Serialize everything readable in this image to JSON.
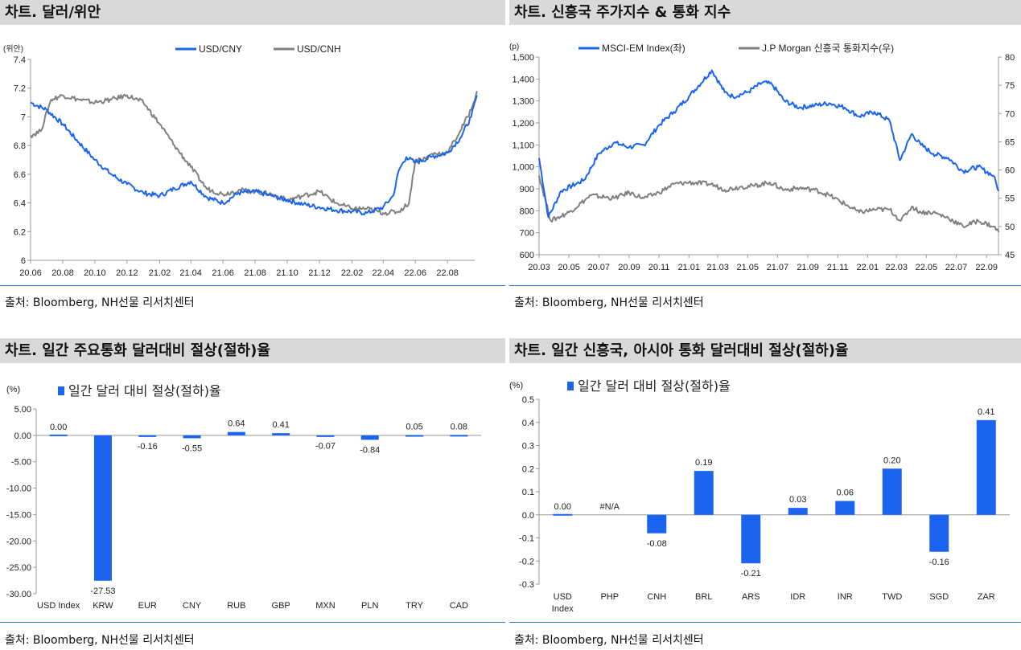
{
  "panels": [
    {
      "title": "차트. 달러/위안",
      "source": "출처: Bloomberg, NH선물 리서치센터"
    },
    {
      "title": "차트. 신흥국 주가지수 & 통화 지수",
      "source": "출처: Bloomberg, NH선물 리서치센터"
    },
    {
      "title": "차트. 일간 주요통화 달러대비 절상(절하)율",
      "source": "출처: Bloomberg, NH선물 리서치센터"
    },
    {
      "title": "차트. 일간 신흥국, 아시아 통화 달러대비 절상(절하)율",
      "source": "출처: Bloomberg, NH선물 리서치센터"
    }
  ],
  "colors": {
    "blue": "#1a64f0",
    "gray": "#808080",
    "title_bg": "#d9d9d9",
    "divider": "#2e75b6"
  },
  "chart_data": [
    {
      "type": "line",
      "unit_label": "(위안)",
      "x_ticks": [
        "20.06",
        "20.08",
        "20.10",
        "20.12",
        "21.02",
        "21.04",
        "21.06",
        "21.08",
        "21.10",
        "21.12",
        "22.02",
        "22.04",
        "22.06",
        "22.08"
      ],
      "y_ticks": [
        "6",
        "6.2",
        "6.4",
        "6.6",
        "6.8",
        "7",
        "7.2",
        "7.4"
      ],
      "ylim": [
        6,
        7.4
      ],
      "legend_position": "top",
      "series": [
        {
          "name": "USD/CNY",
          "color": "#1a64f0",
          "dates": [
            "2020-06-01",
            "2020-07-01",
            "2020-08-01",
            "2020-09-01",
            "2020-10-01",
            "2020-11-01",
            "2020-12-01",
            "2021-01-01",
            "2021-02-01",
            "2021-03-01",
            "2021-04-01",
            "2021-05-01",
            "2021-06-01",
            "2021-07-01",
            "2021-08-01",
            "2021-09-01",
            "2021-10-01",
            "2021-11-01",
            "2021-12-01",
            "2022-01-01",
            "2022-02-01",
            "2022-03-01",
            "2022-04-01",
            "2022-04-20",
            "2022-05-01",
            "2022-05-15",
            "2022-06-01",
            "2022-07-01",
            "2022-08-01",
            "2022-08-25",
            "2022-09-15",
            "2022-09-26"
          ],
          "values": [
            7.1,
            7.05,
            6.95,
            6.82,
            6.7,
            6.6,
            6.53,
            6.47,
            6.45,
            6.5,
            6.55,
            6.44,
            6.4,
            6.47,
            6.48,
            6.45,
            6.42,
            6.39,
            6.37,
            6.35,
            6.34,
            6.33,
            6.37,
            6.45,
            6.63,
            6.72,
            6.68,
            6.72,
            6.75,
            6.85,
            7.0,
            7.15
          ]
        },
        {
          "name": "USD/CNH",
          "color": "#808080",
          "dates": [
            "2020-06-01",
            "2020-06-20",
            "2020-07-10",
            "2020-08-01",
            "2020-09-01",
            "2020-10-01",
            "2020-11-01",
            "2020-12-01",
            "2021-01-01",
            "2021-02-01",
            "2021-03-01",
            "2021-04-01",
            "2021-05-01",
            "2021-06-01",
            "2021-07-01",
            "2021-08-01",
            "2021-09-01",
            "2021-10-01",
            "2021-11-01",
            "2021-12-01",
            "2022-01-01",
            "2022-02-01",
            "2022-03-01",
            "2022-04-01",
            "2022-05-01",
            "2022-05-20",
            "2022-06-01",
            "2022-06-20",
            "2022-07-01",
            "2022-08-01",
            "2022-08-25",
            "2022-09-15",
            "2022-09-26"
          ],
          "values": [
            6.87,
            6.9,
            7.12,
            7.15,
            7.12,
            7.1,
            7.12,
            7.15,
            7.1,
            6.95,
            6.8,
            6.65,
            6.5,
            6.46,
            6.49,
            6.48,
            6.46,
            6.42,
            6.45,
            6.48,
            6.4,
            6.36,
            6.36,
            6.33,
            6.34,
            6.4,
            6.7,
            6.71,
            6.74,
            6.75,
            6.9,
            7.05,
            7.18
          ]
        }
      ]
    },
    {
      "type": "line",
      "unit_label": "(p)",
      "x_ticks": [
        "20.03",
        "20.05",
        "20.07",
        "20.09",
        "20.11",
        "21.01",
        "21.03",
        "21.05",
        "21.07",
        "21.09",
        "21.11",
        "22.01",
        "22.03",
        "22.05",
        "22.07",
        "22.09"
      ],
      "y_left_ticks": [
        "600",
        "700",
        "800",
        "900",
        "1,000",
        "1,100",
        "1,200",
        "1,300",
        "1,400",
        "1,500"
      ],
      "y_right_ticks": [
        "45",
        "50",
        "55",
        "60",
        "65",
        "70",
        "75",
        "80"
      ],
      "ylim_left": [
        600,
        1500
      ],
      "ylim_right": [
        45,
        80
      ],
      "legend_position": "top",
      "series": [
        {
          "name": "MSCI-EM Index(좌)",
          "axis": "left",
          "color": "#1a64f0",
          "dates": [
            "2020-03-01",
            "2020-03-20",
            "2020-04-15",
            "2020-06-01",
            "2020-07-01",
            "2020-08-01",
            "2020-09-01",
            "2020-10-01",
            "2020-11-01",
            "2020-12-01",
            "2021-01-01",
            "2021-02-17",
            "2021-03-15",
            "2021-04-01",
            "2021-05-01",
            "2021-06-01",
            "2021-06-20",
            "2021-07-15",
            "2021-08-15",
            "2021-09-15",
            "2021-10-15",
            "2021-11-15",
            "2021-12-15",
            "2022-01-15",
            "2022-02-15",
            "2022-03-08",
            "2022-04-01",
            "2022-04-20",
            "2022-05-15",
            "2022-06-15",
            "2022-07-15",
            "2022-08-15",
            "2022-09-15",
            "2022-09-26"
          ],
          "values": [
            1040,
            770,
            890,
            940,
            1060,
            1110,
            1090,
            1100,
            1190,
            1250,
            1320,
            1440,
            1340,
            1320,
            1340,
            1385,
            1375,
            1300,
            1270,
            1280,
            1290,
            1270,
            1230,
            1250,
            1210,
            1030,
            1150,
            1100,
            1060,
            1040,
            980,
            1000,
            960,
            890
          ]
        },
        {
          "name": "J.P Morgan 신흥국 통화지수(우)",
          "axis": "right",
          "color": "#808080",
          "dates": [
            "2020-03-01",
            "2020-03-25",
            "2020-05-01",
            "2020-06-15",
            "2020-08-01",
            "2020-09-01",
            "2020-10-01",
            "2020-11-01",
            "2020-12-01",
            "2021-01-01",
            "2021-02-15",
            "2021-03-15",
            "2021-04-15",
            "2021-05-15",
            "2021-06-15",
            "2021-07-15",
            "2021-08-15",
            "2021-09-15",
            "2021-10-15",
            "2021-11-15",
            "2021-12-15",
            "2022-01-15",
            "2022-02-15",
            "2022-03-10",
            "2022-04-01",
            "2022-04-20",
            "2022-05-15",
            "2022-06-15",
            "2022-07-15",
            "2022-08-15",
            "2022-09-15",
            "2022-09-26"
          ],
          "values": [
            59,
            51,
            52.5,
            55.5,
            55,
            56,
            55,
            56,
            57.5,
            57.8,
            57.5,
            56.5,
            57,
            57.2,
            57.8,
            56.5,
            56.8,
            56.5,
            55.5,
            54,
            52.5,
            53,
            53,
            51,
            53.5,
            52.5,
            52.5,
            51.5,
            50,
            51,
            50,
            49
          ]
        }
      ]
    },
    {
      "type": "bar",
      "unit_label": "(%)",
      "legend": "일간 달러 대비 절상(절하)율",
      "categories": [
        "USD Index",
        "KRW",
        "EUR",
        "CNY",
        "RUB",
        "GBP",
        "MXN",
        "PLN",
        "TRY",
        "CAD"
      ],
      "values": [
        0.0,
        -27.53,
        -0.16,
        -0.55,
        0.64,
        0.41,
        -0.07,
        -0.84,
        0.05,
        0.08
      ],
      "labels": [
        "0.00",
        "-27.53",
        "-0.16",
        "-0.55",
        "0.64",
        "0.41",
        "-0.07",
        "-0.84",
        "0.05",
        "0.08"
      ],
      "y_ticks": [
        "5.00",
        "0.00",
        "-5.00",
        "-10.00",
        "-15.00",
        "-20.00",
        "-25.00",
        "-30.00"
      ],
      "ylim": [
        -30,
        5
      ]
    },
    {
      "type": "bar",
      "unit_label": "(%)",
      "legend": "일간 달러 대비 절상(절하)율",
      "categories": [
        "USD Index",
        "PHP",
        "CNH",
        "BRL",
        "ARS",
        "IDR",
        "INR",
        "TWD",
        "SGD",
        "ZAR"
      ],
      "values": [
        0.0,
        null,
        -0.08,
        0.19,
        -0.21,
        0.03,
        0.06,
        0.2,
        -0.16,
        0.41
      ],
      "labels": [
        "0.00",
        "#N/A",
        "-0.08",
        "0.19",
        "-0.21",
        "0.03",
        "0.06",
        "0.20",
        "-0.16",
        "0.41"
      ],
      "y_ticks": [
        "0.5",
        "0.4",
        "0.3",
        "0.2",
        "0.1",
        "0.0",
        "-0.1",
        "-0.2",
        "-0.3"
      ],
      "ylim": [
        -0.3,
        0.5
      ]
    }
  ]
}
